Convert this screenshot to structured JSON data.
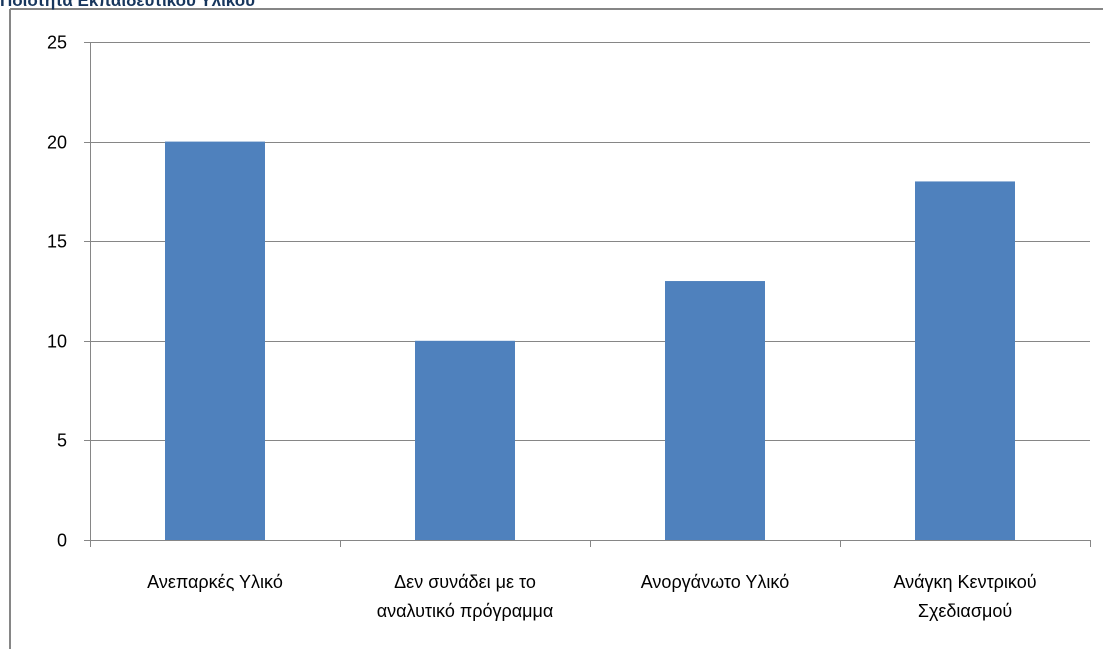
{
  "chart_data": {
    "type": "bar",
    "title": "Ποιότητα Εκπαιδευτικού Υλικού",
    "categories": [
      "Ανεπαρκές Υλικό",
      "Δεν συνάδει με το αναλυτικό πρόγραμμα",
      "Ανοργάνωτο Υλικό",
      "Ανάγκη Κεντρικού Σχεδιασμού"
    ],
    "category_lines": [
      [
        "Ανεπαρκές Υλικό"
      ],
      [
        "Δεν συνάδει με το",
        "αναλυτικό πρόγραμμα"
      ],
      [
        "Ανοργάνωτο Υλικό"
      ],
      [
        "Ανάγκη Κεντρικού",
        "Σχεδιασμού"
      ]
    ],
    "values": [
      20,
      10,
      13,
      18
    ],
    "ylim": [
      0,
      25
    ],
    "yticks": [
      0,
      5,
      10,
      15,
      20,
      25
    ],
    "xlabel": "",
    "ylabel": "",
    "grid": true,
    "legend": "none",
    "colors": {
      "bar": "#4f81bd",
      "grid": "#868686",
      "axis": "#868686",
      "frame": "#868686",
      "title": "#17365d"
    }
  }
}
